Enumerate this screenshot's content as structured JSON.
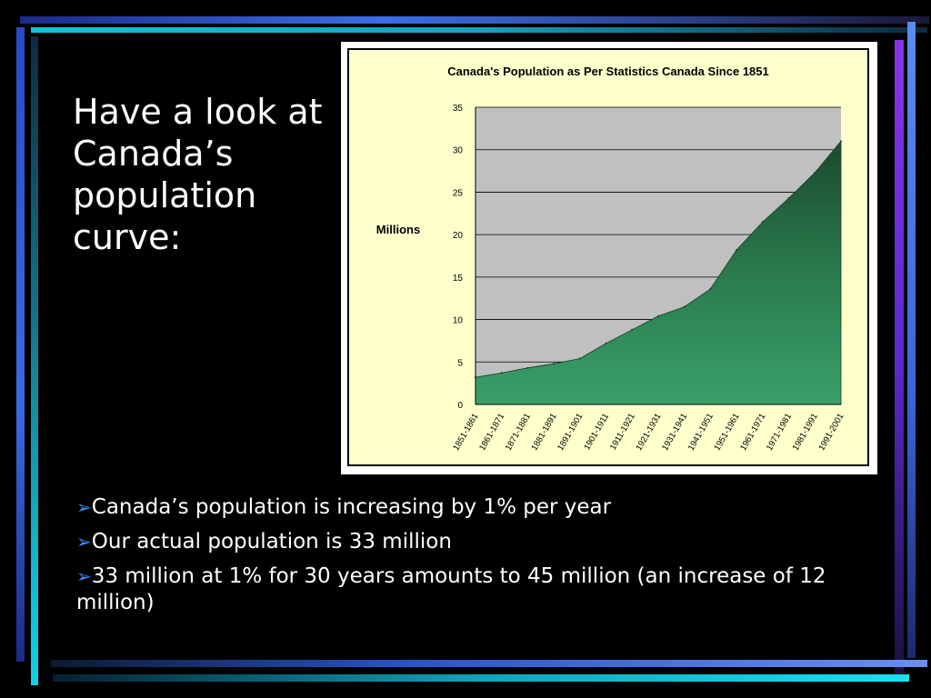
{
  "slide": {
    "title": "Have a look at Canada’s population curve:",
    "bullets": [
      "Canada’s population is increasing by 1% per year",
      "Our actual population is 33 million",
      "33 million at 1% for 30 years amounts to 45 million (an increase of 12 million)"
    ],
    "bullet_icon": "arrow-right-icon"
  },
  "chart_data": {
    "type": "area",
    "title": "Canada's Population as Per Statistics Canada Since 1851",
    "ylabel": "Millions",
    "xlabel": "",
    "ylim": [
      0,
      35
    ],
    "yticks": [
      0,
      5,
      10,
      15,
      20,
      25,
      30,
      35
    ],
    "grid": true,
    "categories": [
      "1851-1861",
      "1861-1871",
      "1871-1881",
      "1881-1891",
      "1891-1901",
      "1901-1911",
      "1911-1921",
      "1921-1931",
      "1931-1941",
      "1941-1951",
      "1951-1961",
      "1961-1971",
      "1971-1981",
      "1981-1991",
      "1991-2001"
    ],
    "values": [
      3.2,
      3.7,
      4.3,
      4.8,
      5.4,
      7.2,
      8.8,
      10.4,
      11.5,
      13.6,
      18.2,
      21.5,
      24.3,
      27.3,
      31.0
    ],
    "colors": {
      "area_fill": "#2e8b57",
      "plot_bg": "#c0c0c0",
      "chart_bg": "#ffffcc"
    }
  }
}
